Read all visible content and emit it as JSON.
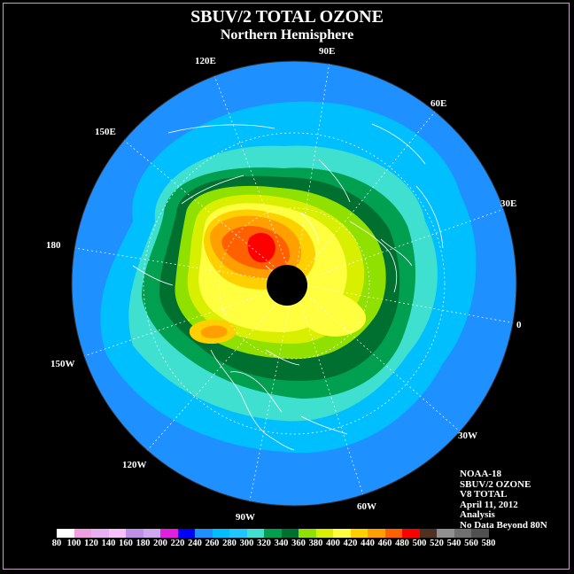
{
  "title": "SBUV/2 TOTAL OZONE",
  "subtitle": "Northern Hemisphere",
  "longitude_labels": [
    "90E",
    "60E",
    "30E",
    "0",
    "30W",
    "60W",
    "90W",
    "120W",
    "150W",
    "180",
    "150E",
    "120E"
  ],
  "info": [
    "NOAA-18",
    "SBUV/2 OZONE",
    "V8 TOTAL",
    "April 11, 2012",
    "Analysis",
    "No Data Beyond 80N"
  ],
  "colorbar": {
    "ticks": [
      "80",
      "100",
      "120",
      "140",
      "160",
      "180",
      "200",
      "220",
      "240",
      "260",
      "280",
      "300",
      "320",
      "340",
      "360",
      "380",
      "400",
      "420",
      "440",
      "460",
      "480",
      "500",
      "520",
      "540",
      "560",
      "580"
    ],
    "colors": [
      "#ffffff",
      "#f0a0e0",
      "#e8b0f0",
      "#f8c0f8",
      "#c090e8",
      "#d0a8f0",
      "#e020e0",
      "#0000ff",
      "#1e90ff",
      "#00bfff",
      "#1ec8ff",
      "#40e0d0",
      "#00a050",
      "#007030",
      "#90e000",
      "#d8f000",
      "#ffff40",
      "#ffd000",
      "#ffa000",
      "#ff6000",
      "#ff0000",
      "#503020",
      "#909090",
      "#707070",
      "#505050"
    ]
  },
  "map": {
    "water_color": "#1e90ff",
    "outside_color": "#000000",
    "coast_color": "#ffffff",
    "nodata_color": "#000000"
  }
}
